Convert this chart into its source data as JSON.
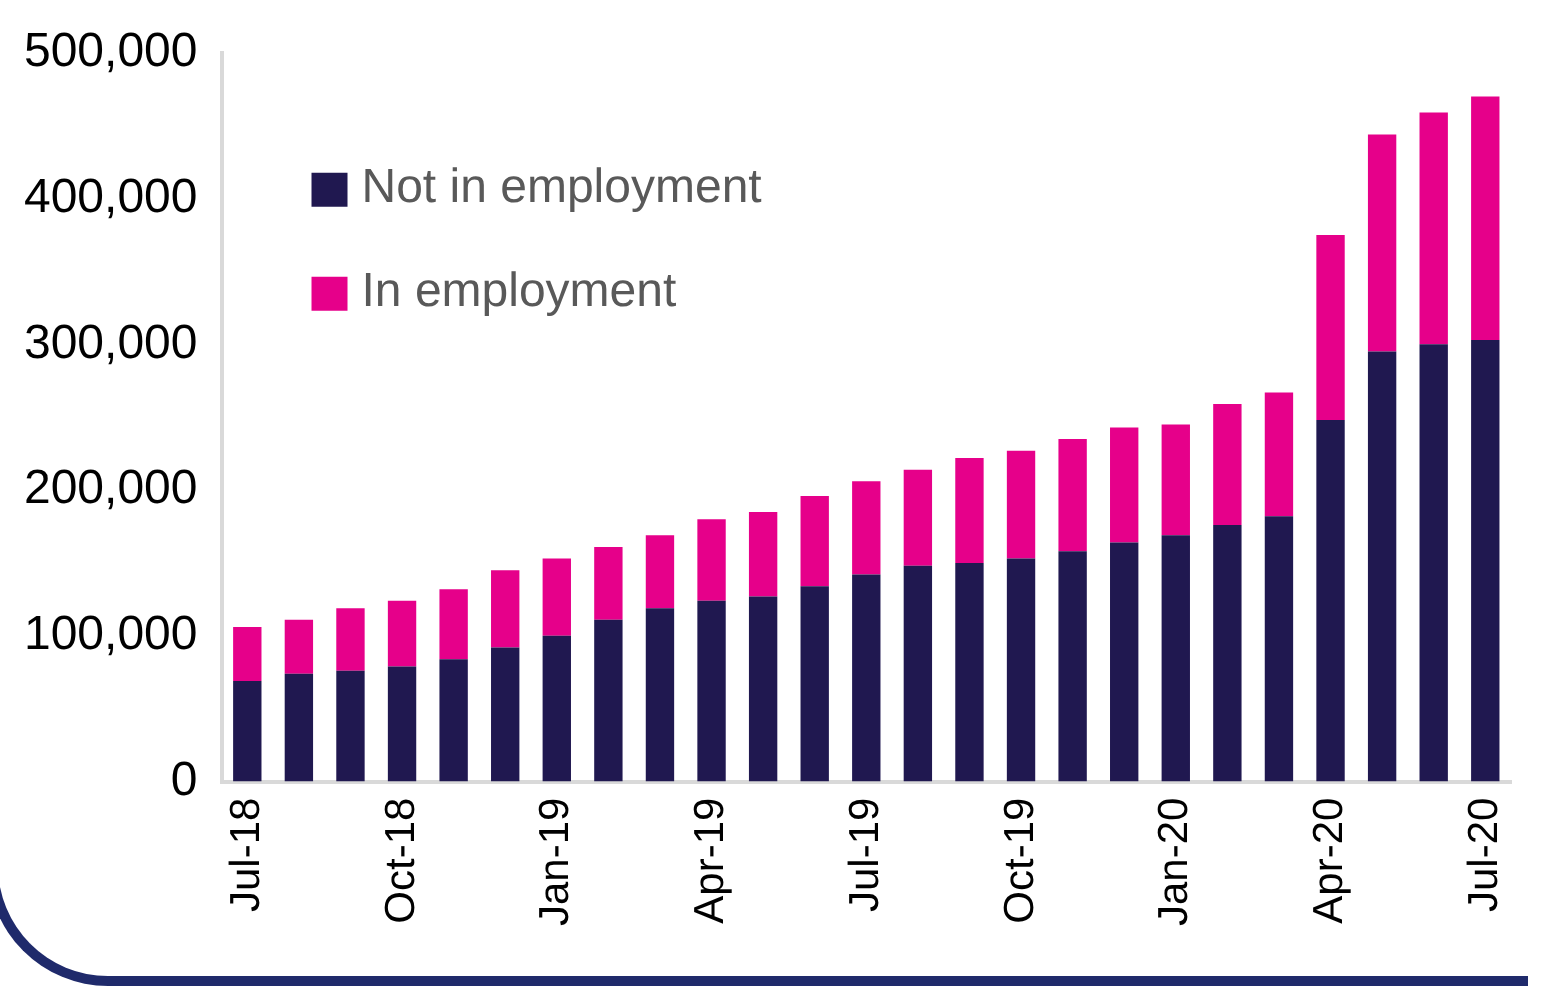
{
  "chart_data": {
    "type": "bar",
    "stacked": true,
    "categories": [
      "Jul-18",
      null,
      null,
      "Oct-18",
      null,
      null,
      "Jan-19",
      null,
      null,
      "Apr-19",
      null,
      null,
      "Jul-19",
      null,
      null,
      "Oct-19",
      null,
      null,
      "Jan-20",
      null,
      null,
      "Apr-20",
      null,
      null,
      "Jul-20"
    ],
    "series": [
      {
        "name": "Not in employment",
        "color": "#201850",
        "values": [
          69000,
          74000,
          76000,
          79000,
          84000,
          92000,
          100000,
          111000,
          119000,
          124000,
          127000,
          134000,
          142000,
          148000,
          150000,
          153000,
          158000,
          164000,
          169000,
          176000,
          182000,
          248000,
          295000,
          300000,
          303000
        ]
      },
      {
        "name": "In employment",
        "color": "#e6008a",
        "values": [
          37000,
          37000,
          43000,
          45000,
          48000,
          53000,
          53000,
          50000,
          50000,
          56000,
          58000,
          62000,
          64000,
          66000,
          72000,
          74000,
          77000,
          79000,
          76000,
          83000,
          85000,
          127000,
          149000,
          159000,
          167000
        ]
      }
    ],
    "ylim": [
      0,
      500000
    ],
    "yticks": [
      0,
      {
        "value": 100000,
        "label": "100,000"
      },
      {
        "value": 200000,
        "label": "200,000"
      },
      {
        "value": 300000,
        "label": "300,000"
      },
      {
        "value": 400000,
        "label": "400,000"
      },
      {
        "value": 500000,
        "label": "500,000"
      }
    ],
    "grid": false,
    "legend": "top left"
  }
}
